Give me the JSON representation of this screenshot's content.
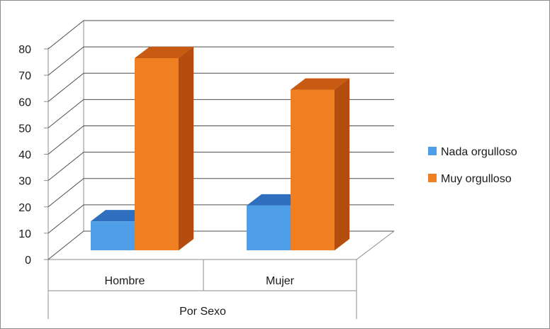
{
  "chart_data": {
    "type": "bar",
    "style": "3d-clustered-column",
    "categories": [
      "Hombre",
      "Mujer"
    ],
    "group_label": "Por Sexo",
    "series": [
      {
        "name": "Nada orgulloso",
        "values": [
          11,
          17
        ],
        "color": "#4f9ee8",
        "top_color": "#2f6fbf",
        "side_color": "#2a62ad"
      },
      {
        "name": "Muy orgulloso",
        "values": [
          73,
          61
        ],
        "color": "#f07f22",
        "top_color": "#c85a12",
        "side_color": "#b44d0e"
      }
    ],
    "ylim": [
      0,
      80
    ],
    "yticks": [
      "0",
      "10",
      "20",
      "30",
      "40",
      "50",
      "60",
      "70",
      "80"
    ],
    "grid": true,
    "legend_position": "right"
  }
}
